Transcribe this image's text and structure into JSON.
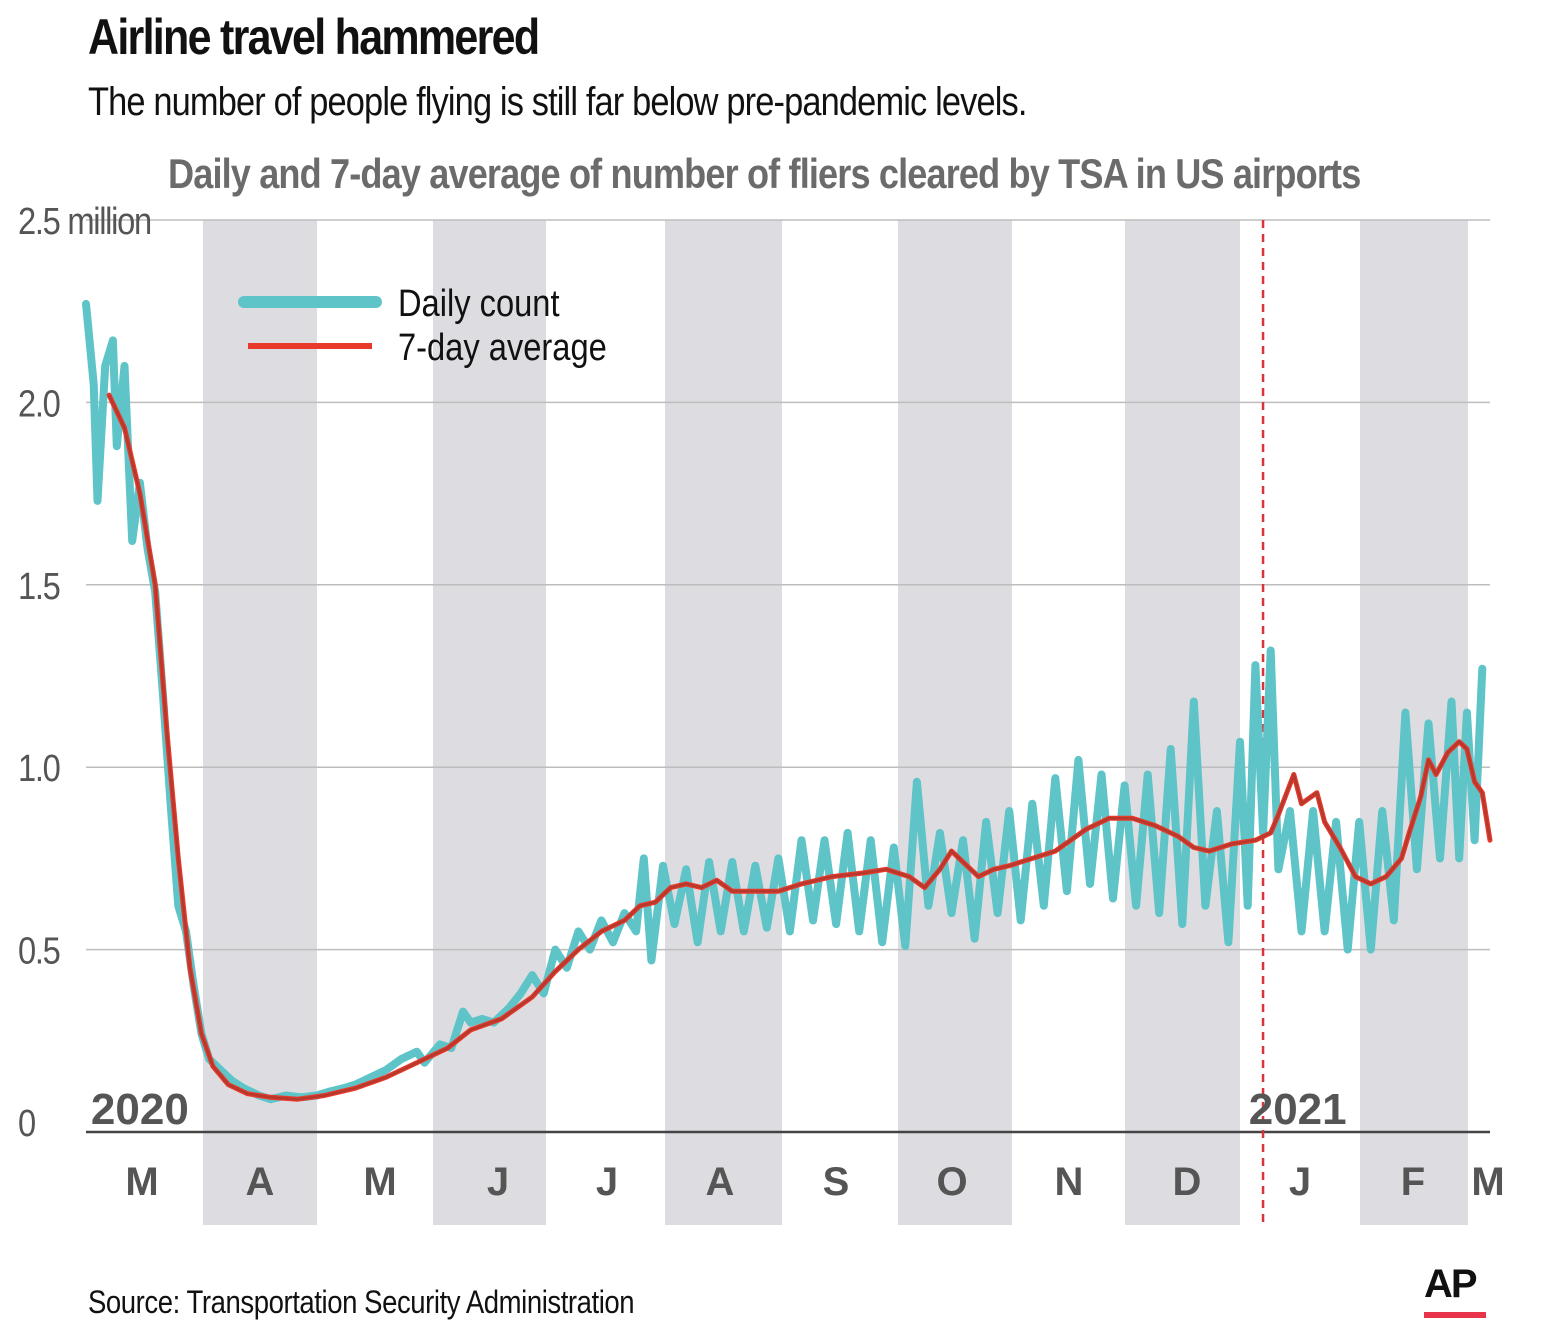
{
  "header": {
    "title": "Airline travel hammered",
    "subtitle": "The number of people flying is still far below pre-pandemic levels."
  },
  "footer": {
    "source": "Source: Transportation Security Administration",
    "logo_text": "AP"
  },
  "colors": {
    "daily": "#5ec4c8",
    "average": "#e8392b",
    "band": "#dddde1",
    "grid": "#bdbdbd",
    "divider": "#d9343a",
    "accent": "#e8334a"
  },
  "chart_data": {
    "type": "line",
    "title": "Daily and 7-day average of number of fliers cleared by TSA in US airports",
    "ylabel": "",
    "xlabel": "",
    "ylim": [
      0,
      2.5
    ],
    "y_ticks": [
      {
        "value": 0,
        "label": "0"
      },
      {
        "value": 0.5,
        "label": "0.5"
      },
      {
        "value": 1.0,
        "label": "1.0"
      },
      {
        "value": 1.5,
        "label": "1.5"
      },
      {
        "value": 2.0,
        "label": "2.0"
      },
      {
        "value": 2.5,
        "label": "2.5 million"
      }
    ],
    "months": [
      "M",
      "A",
      "M",
      "J",
      "J",
      "A",
      "S",
      "O",
      "N",
      "D",
      "J",
      "F",
      "M"
    ],
    "x_unit": "days since March 1, 2020",
    "xlim": [
      0,
      365
    ],
    "shaded_months": [
      1,
      3,
      5,
      7,
      9,
      11
    ],
    "year_labels": [
      {
        "label": "2020",
        "day": 14
      },
      {
        "label": "2021",
        "day": 315
      }
    ],
    "year_divider_day": 306,
    "legend": {
      "position": "top-left",
      "items": [
        "Daily count",
        "7-day average"
      ]
    },
    "series": [
      {
        "name": "Daily count",
        "points": [
          [
            0,
            2.27
          ],
          [
            2,
            2.05
          ],
          [
            3,
            1.73
          ],
          [
            5,
            2.1
          ],
          [
            7,
            2.17
          ],
          [
            8,
            1.88
          ],
          [
            10,
            2.1
          ],
          [
            12,
            1.62
          ],
          [
            14,
            1.78
          ],
          [
            16,
            1.6
          ],
          [
            18,
            1.48
          ],
          [
            20,
            1.2
          ],
          [
            22,
            0.9
          ],
          [
            24,
            0.62
          ],
          [
            26,
            0.55
          ],
          [
            28,
            0.4
          ],
          [
            30,
            0.27
          ],
          [
            32,
            0.2
          ],
          [
            35,
            0.17
          ],
          [
            38,
            0.14
          ],
          [
            41,
            0.12
          ],
          [
            45,
            0.1
          ],
          [
            48,
            0.09
          ],
          [
            52,
            0.1
          ],
          [
            56,
            0.095
          ],
          [
            60,
            0.1
          ],
          [
            63,
            0.11
          ],
          [
            67,
            0.12
          ],
          [
            70,
            0.13
          ],
          [
            74,
            0.15
          ],
          [
            78,
            0.17
          ],
          [
            82,
            0.2
          ],
          [
            86,
            0.22
          ],
          [
            88,
            0.19
          ],
          [
            92,
            0.24
          ],
          [
            95,
            0.23
          ],
          [
            98,
            0.33
          ],
          [
            100,
            0.3
          ],
          [
            103,
            0.31
          ],
          [
            106,
            0.3
          ],
          [
            110,
            0.34
          ],
          [
            113,
            0.38
          ],
          [
            116,
            0.43
          ],
          [
            119,
            0.38
          ],
          [
            122,
            0.5
          ],
          [
            125,
            0.45
          ],
          [
            128,
            0.55
          ],
          [
            131,
            0.5
          ],
          [
            134,
            0.58
          ],
          [
            137,
            0.52
          ],
          [
            140,
            0.6
          ],
          [
            143,
            0.55
          ],
          [
            145,
            0.75
          ],
          [
            147,
            0.47
          ],
          [
            150,
            0.73
          ],
          [
            153,
            0.57
          ],
          [
            156,
            0.72
          ],
          [
            159,
            0.52
          ],
          [
            162,
            0.74
          ],
          [
            165,
            0.55
          ],
          [
            168,
            0.74
          ],
          [
            171,
            0.55
          ],
          [
            174,
            0.73
          ],
          [
            177,
            0.56
          ],
          [
            180,
            0.75
          ],
          [
            183,
            0.55
          ],
          [
            186,
            0.8
          ],
          [
            189,
            0.58
          ],
          [
            192,
            0.8
          ],
          [
            195,
            0.57
          ],
          [
            198,
            0.82
          ],
          [
            201,
            0.55
          ],
          [
            204,
            0.8
          ],
          [
            207,
            0.52
          ],
          [
            210,
            0.78
          ],
          [
            213,
            0.51
          ],
          [
            216,
            0.96
          ],
          [
            219,
            0.62
          ],
          [
            222,
            0.82
          ],
          [
            225,
            0.6
          ],
          [
            228,
            0.8
          ],
          [
            231,
            0.53
          ],
          [
            234,
            0.85
          ],
          [
            237,
            0.6
          ],
          [
            240,
            0.88
          ],
          [
            243,
            0.58
          ],
          [
            246,
            0.9
          ],
          [
            249,
            0.62
          ],
          [
            252,
            0.97
          ],
          [
            255,
            0.66
          ],
          [
            258,
            1.02
          ],
          [
            261,
            0.68
          ],
          [
            264,
            0.98
          ],
          [
            267,
            0.64
          ],
          [
            270,
            0.95
          ],
          [
            273,
            0.62
          ],
          [
            276,
            0.98
          ],
          [
            279,
            0.6
          ],
          [
            282,
            1.05
          ],
          [
            285,
            0.57
          ],
          [
            288,
            1.18
          ],
          [
            291,
            0.62
          ],
          [
            294,
            0.88
          ],
          [
            297,
            0.52
          ],
          [
            300,
            1.07
          ],
          [
            302,
            0.62
          ],
          [
            304,
            1.28
          ],
          [
            306,
            0.82
          ],
          [
            308,
            1.32
          ],
          [
            310,
            0.72
          ],
          [
            313,
            0.88
          ],
          [
            316,
            0.55
          ],
          [
            319,
            0.88
          ],
          [
            322,
            0.55
          ],
          [
            325,
            0.85
          ],
          [
            328,
            0.5
          ],
          [
            331,
            0.85
          ],
          [
            334,
            0.5
          ],
          [
            337,
            0.88
          ],
          [
            340,
            0.58
          ],
          [
            343,
            1.15
          ],
          [
            346,
            0.72
          ],
          [
            349,
            1.12
          ],
          [
            352,
            0.75
          ],
          [
            355,
            1.18
          ],
          [
            357,
            0.75
          ],
          [
            359,
            1.15
          ],
          [
            361,
            0.8
          ],
          [
            363,
            1.27
          ]
        ]
      },
      {
        "name": "7-day average",
        "points": [
          [
            6,
            2.02
          ],
          [
            10,
            1.93
          ],
          [
            14,
            1.75
          ],
          [
            18,
            1.5
          ],
          [
            21,
            1.1
          ],
          [
            24,
            0.75
          ],
          [
            27,
            0.45
          ],
          [
            30,
            0.27
          ],
          [
            33,
            0.18
          ],
          [
            37,
            0.13
          ],
          [
            42,
            0.105
          ],
          [
            48,
            0.095
          ],
          [
            55,
            0.09
          ],
          [
            62,
            0.1
          ],
          [
            70,
            0.12
          ],
          [
            78,
            0.15
          ],
          [
            86,
            0.19
          ],
          [
            94,
            0.23
          ],
          [
            100,
            0.28
          ],
          [
            108,
            0.31
          ],
          [
            116,
            0.37
          ],
          [
            122,
            0.44
          ],
          [
            128,
            0.5
          ],
          [
            134,
            0.55
          ],
          [
            140,
            0.58
          ],
          [
            144,
            0.62
          ],
          [
            148,
            0.63
          ],
          [
            152,
            0.67
          ],
          [
            156,
            0.68
          ],
          [
            160,
            0.67
          ],
          [
            164,
            0.69
          ],
          [
            168,
            0.66
          ],
          [
            180,
            0.66
          ],
          [
            186,
            0.68
          ],
          [
            194,
            0.7
          ],
          [
            202,
            0.71
          ],
          [
            208,
            0.72
          ],
          [
            214,
            0.7
          ],
          [
            218,
            0.67
          ],
          [
            222,
            0.72
          ],
          [
            225,
            0.77
          ],
          [
            228,
            0.74
          ],
          [
            232,
            0.7
          ],
          [
            236,
            0.72
          ],
          [
            240,
            0.73
          ],
          [
            246,
            0.75
          ],
          [
            252,
            0.77
          ],
          [
            256,
            0.8
          ],
          [
            260,
            0.83
          ],
          [
            266,
            0.86
          ],
          [
            272,
            0.86
          ],
          [
            278,
            0.84
          ],
          [
            284,
            0.81
          ],
          [
            288,
            0.78
          ],
          [
            292,
            0.77
          ],
          [
            298,
            0.79
          ],
          [
            304,
            0.8
          ],
          [
            308,
            0.82
          ],
          [
            310,
            0.87
          ],
          [
            314,
            0.98
          ],
          [
            316,
            0.9
          ],
          [
            320,
            0.93
          ],
          [
            322,
            0.85
          ],
          [
            326,
            0.78
          ],
          [
            330,
            0.7
          ],
          [
            334,
            0.68
          ],
          [
            338,
            0.7
          ],
          [
            342,
            0.75
          ],
          [
            344,
            0.82
          ],
          [
            347,
            0.92
          ],
          [
            349,
            1.02
          ],
          [
            351,
            0.98
          ],
          [
            354,
            1.04
          ],
          [
            357,
            1.07
          ],
          [
            359,
            1.05
          ],
          [
            361,
            0.96
          ],
          [
            363,
            0.93
          ],
          [
            365,
            0.8
          ]
        ]
      }
    ]
  }
}
